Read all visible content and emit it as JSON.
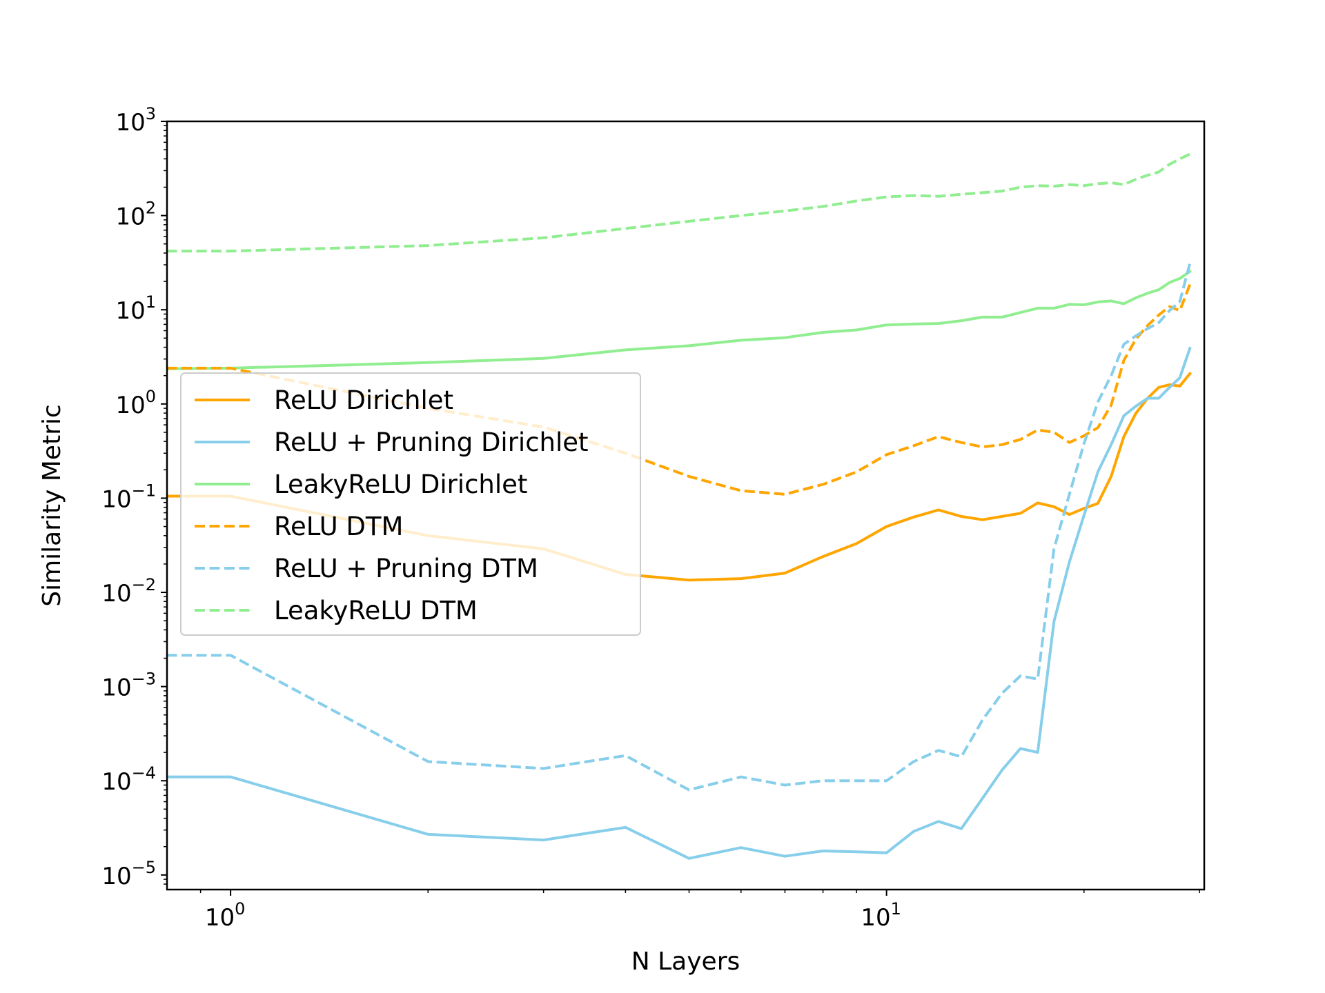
{
  "chart_data": {
    "type": "line",
    "xlabel": "N Layers",
    "ylabel": "Similarity Metric",
    "xscale": "log",
    "yscale": "log",
    "xlim": [
      0.8,
      30.5
    ],
    "ylim": [
      7e-06,
      1000
    ],
    "x_ticks": [
      {
        "value": 1,
        "base": "10",
        "exp": "0"
      },
      {
        "value": 10,
        "base": "10",
        "exp": "1"
      }
    ],
    "y_ticks": [
      {
        "value": 1e-05,
        "base": "10",
        "exp": "−5"
      },
      {
        "value": 0.0001,
        "base": "10",
        "exp": "−4"
      },
      {
        "value": 0.001,
        "base": "10",
        "exp": "−3"
      },
      {
        "value": 0.01,
        "base": "10",
        "exp": "−2"
      },
      {
        "value": 0.1,
        "base": "10",
        "exp": "−1"
      },
      {
        "value": 1,
        "base": "10",
        "exp": "0"
      },
      {
        "value": 10,
        "base": "10",
        "exp": "1"
      },
      {
        "value": 100,
        "base": "10",
        "exp": "2"
      },
      {
        "value": 1000,
        "base": "10",
        "exp": "3"
      }
    ],
    "grid": false,
    "legend_position": "center-left",
    "x": [
      0,
      1,
      2,
      3,
      4,
      5,
      6,
      7,
      8,
      9,
      10,
      11,
      12,
      13,
      14,
      15,
      16,
      17,
      18,
      19,
      20,
      21,
      22,
      23,
      24,
      25,
      26,
      27,
      28,
      29
    ],
    "series": [
      {
        "name": "ReLU Dirichlet",
        "color": "#FFA500",
        "dash": "solid",
        "values": [
          0.105,
          0.105,
          0.04,
          0.029,
          0.0155,
          0.0135,
          0.014,
          0.016,
          0.024,
          0.033,
          0.05,
          0.063,
          0.075,
          0.064,
          0.059,
          0.064,
          0.069,
          0.089,
          0.081,
          0.067,
          0.078,
          0.088,
          0.17,
          0.45,
          0.8,
          1.15,
          1.5,
          1.6,
          1.55,
          2.1
        ]
      },
      {
        "name": "ReLU + Pruning Dirichlet",
        "color": "#87CEEB",
        "dash": "solid",
        "values": [
          0.00011,
          0.00011,
          2.7e-05,
          2.35e-05,
          3.2e-05,
          1.5e-05,
          1.95e-05,
          1.58e-05,
          1.8e-05,
          1.76e-05,
          1.72e-05,
          2.9e-05,
          3.7e-05,
          3.1e-05,
          6.5e-05,
          0.00013,
          0.00022,
          0.0002,
          0.0049,
          0.021,
          0.066,
          0.19,
          0.37,
          0.75,
          0.95,
          1.15,
          1.15,
          1.5,
          1.9,
          3.9
        ]
      },
      {
        "name": "LeakyReLU Dirichlet",
        "color": "#90EE90",
        "dash": "solid",
        "values": [
          2.35,
          2.4,
          2.75,
          3.05,
          3.75,
          4.15,
          4.75,
          5.05,
          5.75,
          6.1,
          6.9,
          7.05,
          7.15,
          7.65,
          8.35,
          8.35,
          9.35,
          10.4,
          10.4,
          11.4,
          11.3,
          12.1,
          12.4,
          11.6,
          13.4,
          15.0,
          16.3,
          19.5,
          21.5,
          25.5
        ]
      },
      {
        "name": "ReLU DTM",
        "color": "#FFA500",
        "dash": "dashed",
        "values": [
          2.4,
          2.4,
          0.9,
          0.57,
          0.3,
          0.17,
          0.12,
          0.11,
          0.14,
          0.19,
          0.29,
          0.36,
          0.45,
          0.39,
          0.35,
          0.37,
          0.42,
          0.53,
          0.5,
          0.39,
          0.46,
          0.56,
          0.97,
          2.9,
          4.9,
          6.8,
          8.8,
          10.8,
          9.8,
          18.5
        ]
      },
      {
        "name": "ReLU + Pruning DTM",
        "color": "#87CEEB",
        "dash": "dashed",
        "values": [
          0.00215,
          0.00215,
          0.00016,
          0.000135,
          0.000185,
          8e-05,
          0.00011,
          9e-05,
          0.0001,
          0.0001,
          0.0001,
          0.00016,
          0.00021,
          0.00018,
          0.00044,
          0.00085,
          0.0013,
          0.0012,
          0.029,
          0.11,
          0.38,
          1.05,
          2.0,
          4.3,
          5.3,
          6.3,
          7.3,
          9.8,
          12.3,
          31
        ]
      },
      {
        "name": "LeakyReLU DTM",
        "color": "#90EE90",
        "dash": "dashed",
        "values": [
          42,
          42,
          48,
          58,
          73,
          87,
          100,
          112,
          125,
          143,
          158,
          163,
          160,
          168,
          175,
          182,
          200,
          208,
          205,
          213,
          208,
          218,
          223,
          213,
          243,
          268,
          290,
          350,
          400,
          450
        ]
      }
    ]
  }
}
